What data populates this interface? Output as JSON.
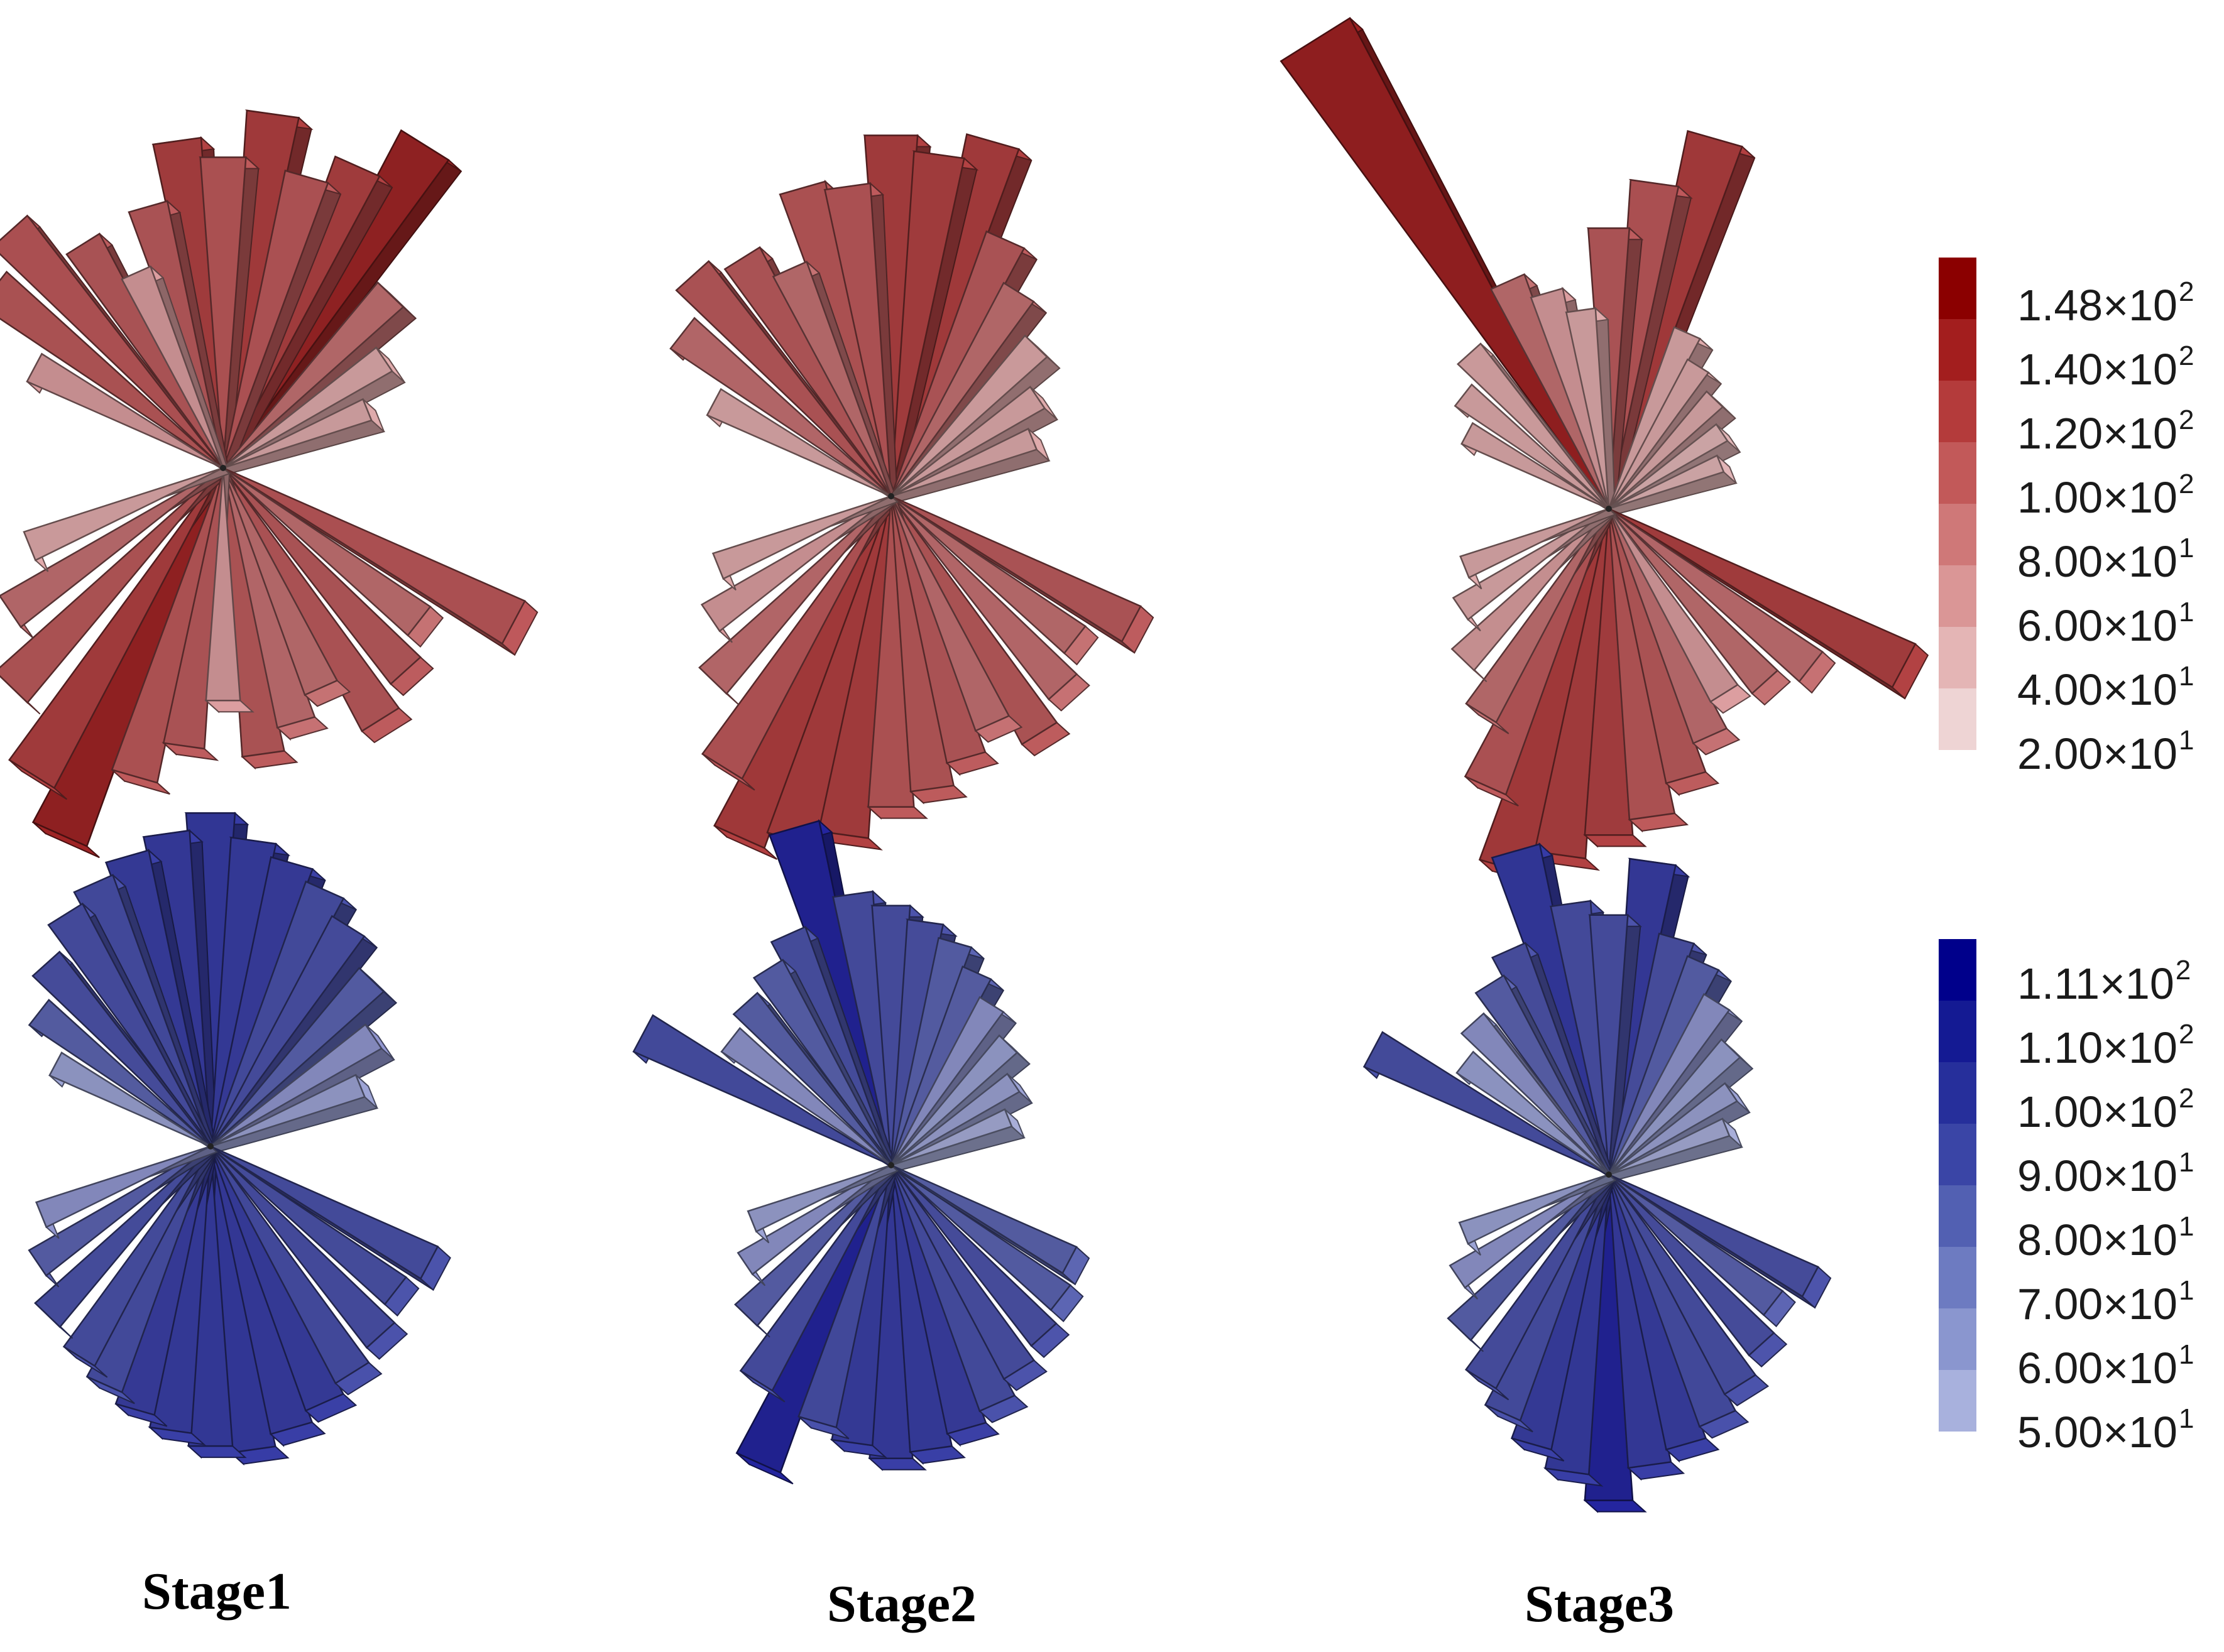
{
  "chart_data": {
    "type": "rose-diagram-3d",
    "stage_labels": [
      "Stage1",
      "Stage2",
      "Stage3"
    ],
    "rows": [
      {
        "name": "red",
        "legend_colors": [
          "#8b0000",
          "#a31e1e",
          "#b43b3b",
          "#c25959",
          "#cf7878",
          "#da9696",
          "#e4b5b5",
          "#eed4d4"
        ],
        "legend_ticks": [
          {
            "mantissa": "1.48",
            "exp": "2"
          },
          {
            "mantissa": "1.40",
            "exp": "2"
          },
          {
            "mantissa": "1.20",
            "exp": "2"
          },
          {
            "mantissa": "1.00",
            "exp": "2"
          },
          {
            "mantissa": "8.00",
            "exp": "1"
          },
          {
            "mantissa": "6.00",
            "exp": "1"
          },
          {
            "mantissa": "4.00",
            "exp": "1"
          },
          {
            "mantissa": "2.00",
            "exp": "1"
          }
        ],
        "stages": [
          {
            "stage": "Stage1",
            "directions_deg": [
              -62,
              -52,
              -42,
              -32,
              -24,
              -16,
              -8,
              0,
              8,
              16,
              24,
              32,
              44,
              56,
              68
            ],
            "lengths_upper": [
              0.55,
              0.75,
              0.82,
              0.68,
              0.55,
              0.7,
              0.85,
              0.8,
              0.92,
              0.78,
              0.85,
              0.98,
              0.62,
              0.5,
              0.4
            ],
            "lengths_lower": [
              0.82,
              0.62,
              0.68,
              0.74,
              0.6,
              0.66,
              0.72,
              0.58,
              0.7,
              0.8,
              1.0,
              0.9,
              0.76,
              0.64,
              0.52
            ]
          },
          {
            "stage": "Stage2",
            "directions_deg": [
              -62,
              -52,
              -42,
              -32,
              -24,
              -16,
              -8,
              0,
              8,
              16,
              24,
              32,
              44,
              56,
              68
            ],
            "lengths_upper": [
              0.5,
              0.66,
              0.74,
              0.7,
              0.62,
              0.8,
              0.78,
              0.9,
              0.86,
              0.92,
              0.7,
              0.6,
              0.52,
              0.44,
              0.38
            ],
            "lengths_lower": [
              0.7,
              0.6,
              0.66,
              0.72,
              0.64,
              0.7,
              0.76,
              0.8,
              0.88,
              0.92,
              0.96,
              0.82,
              0.66,
              0.56,
              0.48
            ]
          },
          {
            "stage": "Stage3",
            "directions_deg": [
              -62,
              -52,
              -42,
              -32,
              -24,
              -16,
              -8,
              0,
              8,
              16,
              24,
              32,
              44,
              56,
              68
            ],
            "lengths_upper": [
              0.4,
              0.46,
              0.52,
              1.38,
              0.62,
              0.56,
              0.5,
              0.7,
              0.82,
              0.96,
              0.48,
              0.42,
              0.38,
              0.34,
              0.3
            ],
            "lengths_lower": [
              0.86,
              0.66,
              0.6,
              0.56,
              0.64,
              0.72,
              0.8,
              0.84,
              0.9,
              0.96,
              0.78,
              0.62,
              0.54,
              0.46,
              0.4
            ]
          }
        ]
      },
      {
        "name": "blue",
        "legend_colors": [
          "#00008b",
          "#141a93",
          "#262f9b",
          "#3a45a6",
          "#5260b2",
          "#6d7bc1",
          "#8a96cf",
          "#a8b1dd"
        ],
        "legend_ticks": [
          {
            "mantissa": "1.11",
            "exp": "2"
          },
          {
            "mantissa": "1.10",
            "exp": "2"
          },
          {
            "mantissa": "1.00",
            "exp": "2"
          },
          {
            "mantissa": "9.00",
            "exp": "1"
          },
          {
            "mantissa": "8.00",
            "exp": "1"
          },
          {
            "mantissa": "7.00",
            "exp": "1"
          },
          {
            "mantissa": "6.00",
            "exp": "1"
          },
          {
            "mantissa": "5.00",
            "exp": "1"
          }
        ],
        "stages": [
          {
            "stage": "Stage1",
            "directions_deg": [
              -62,
              -52,
              -42,
              -32,
              -24,
              -16,
              -8,
              0,
              8,
              16,
              24,
              32,
              44,
              56,
              68
            ],
            "lengths_upper": [
              0.5,
              0.62,
              0.7,
              0.78,
              0.82,
              0.86,
              0.9,
              0.95,
              0.88,
              0.84,
              0.8,
              0.74,
              0.66,
              0.56,
              0.46
            ],
            "lengths_lower": [
              0.76,
              0.72,
              0.78,
              0.82,
              0.86,
              0.9,
              0.94,
              0.92,
              0.88,
              0.84,
              0.8,
              0.76,
              0.72,
              0.64,
              0.56
            ]
          },
          {
            "stage": "Stage2",
            "directions_deg": [
              -62,
              -52,
              -42,
              -32,
              -24,
              -16,
              -8,
              0,
              8,
              16,
              24,
              32,
              44,
              56,
              68
            ],
            "lengths_upper": [
              0.8,
              0.58,
              0.62,
              0.66,
              0.72,
              1.0,
              0.78,
              0.74,
              0.7,
              0.66,
              0.6,
              0.54,
              0.48,
              0.42,
              0.36
            ],
            "lengths_lower": [
              0.62,
              0.66,
              0.7,
              0.74,
              0.8,
              0.84,
              0.88,
              0.9,
              0.86,
              0.82,
              1.0,
              0.78,
              0.64,
              0.54,
              0.46
            ]
          },
          {
            "stage": "Stage3",
            "directions_deg": [
              -62,
              -52,
              -42,
              -32,
              -24,
              -16,
              -8,
              0,
              8,
              16,
              24,
              32,
              44,
              56,
              68
            ],
            "lengths_upper": [
              0.76,
              0.52,
              0.58,
              0.64,
              0.7,
              0.96,
              0.78,
              0.74,
              0.9,
              0.7,
              0.66,
              0.58,
              0.5,
              0.42,
              0.36
            ],
            "lengths_lower": [
              0.7,
              0.64,
              0.7,
              0.76,
              0.82,
              0.86,
              0.9,
              1.0,
              0.92,
              0.86,
              0.8,
              0.74,
              0.66,
              0.56,
              0.48
            ]
          }
        ]
      }
    ]
  }
}
